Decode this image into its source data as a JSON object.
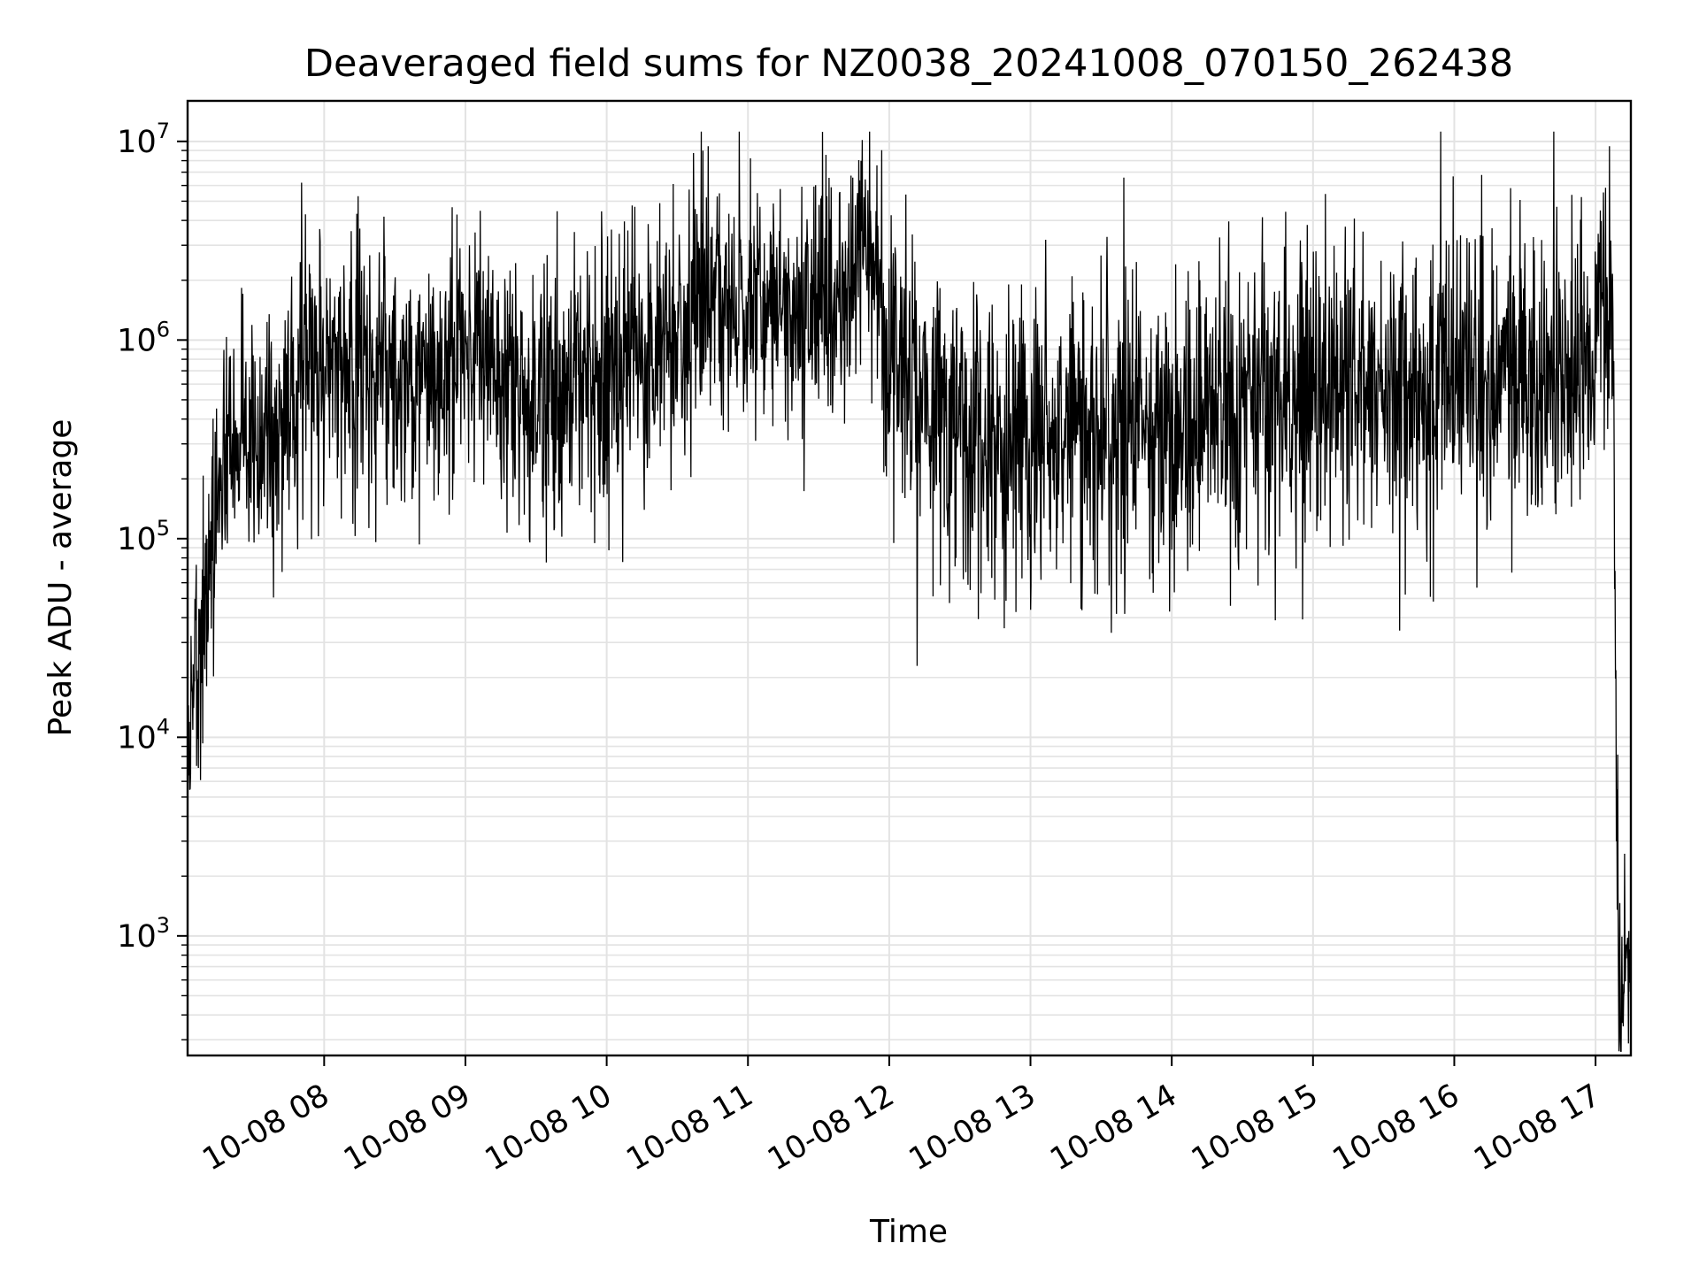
{
  "chart_data": {
    "type": "line",
    "title": "Deaveraged field sums for NZ0038_20241008_070150_262438",
    "xlabel": "Time",
    "ylabel": "Peak ADU - average",
    "yscale": "log",
    "ylim": [
      250,
      16000000
    ],
    "xlim": [
      "2024-10-08 07:02",
      "2024-10-08 17:15"
    ],
    "grid": true,
    "line_color": "#000000",
    "grid_color": "#e3e3e3",
    "x_ticks": [
      "10-08 08",
      "10-08 09",
      "10-08 10",
      "10-08 11",
      "10-08 12",
      "10-08 13",
      "10-08 14",
      "10-08 15",
      "10-08 16",
      "10-08 17"
    ],
    "y_ticks": [
      {
        "value": 1000,
        "base": "10",
        "exp": "3"
      },
      {
        "value": 10000,
        "base": "10",
        "exp": "4"
      },
      {
        "value": 100000,
        "base": "10",
        "exp": "5"
      },
      {
        "value": 1000000,
        "base": "10",
        "exp": "6"
      },
      {
        "value": 10000000,
        "base": "10",
        "exp": "7"
      }
    ],
    "series": [
      {
        "x": [
          "2024-10-08 07:02",
          "2024-10-08 07:05",
          "2024-10-08 07:08",
          "2024-10-08 07:12",
          "2024-10-08 07:15",
          "2024-10-08 07:20",
          "2024-10-08 07:25",
          "2024-10-08 07:30",
          "2024-10-08 07:36",
          "2024-10-08 07:45",
          "2024-10-08 08:00",
          "2024-10-08 08:10",
          "2024-10-08 08:30",
          "2024-10-08 08:45",
          "2024-10-08 09:00",
          "2024-10-08 09:15",
          "2024-10-08 09:30",
          "2024-10-08 09:45",
          "2024-10-08 10:00",
          "2024-10-08 10:15",
          "2024-10-08 10:30",
          "2024-10-08 10:40",
          "2024-10-08 11:00",
          "2024-10-08 11:20",
          "2024-10-08 11:40",
          "2024-10-08 11:55",
          "2024-10-08 12:00",
          "2024-10-08 12:20",
          "2024-10-08 12:40",
          "2024-10-08 13:00",
          "2024-10-08 13:30",
          "2024-10-08 14:00",
          "2024-10-08 14:20",
          "2024-10-08 14:40",
          "2024-10-08 15:00",
          "2024-10-08 15:30",
          "2024-10-08 16:00",
          "2024-10-08 16:30",
          "2024-10-08 16:55",
          "2024-10-08 17:05",
          "2024-10-08 17:07",
          "2024-10-08 17:10",
          "2024-10-08 17:13",
          "2024-10-08 17:15"
        ],
        "y": [
          5000,
          20000,
          40000,
          100000,
          200000,
          300000,
          350000,
          300000,
          250000,
          500000,
          700000,
          900000,
          600000,
          700000,
          900000,
          600000,
          450000,
          500000,
          600000,
          800000,
          1000000,
          1800000,
          1500000,
          1200000,
          1700000,
          2000000,
          900000,
          400000,
          300000,
          300000,
          350000,
          300000,
          450000,
          600000,
          500000,
          550000,
          600000,
          650000,
          700000,
          1300000,
          1400000,
          300,
          1000,
          500
        ]
      }
    ]
  }
}
